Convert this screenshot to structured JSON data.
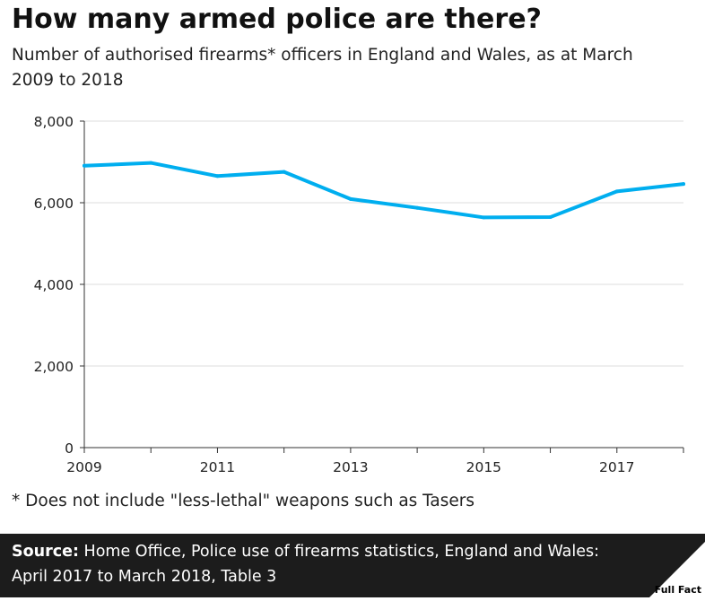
{
  "title": "How many armed police are there?",
  "subtitle": "Number of authorised firearms* officers in England and Wales, as at March 2009 to 2018",
  "footnote": "* Does not include \"less-lethal\" weapons such as Tasers",
  "source": {
    "label": "Source:",
    "text": "Home Office, Police use of firearms statistics, England and Wales: April 2017 to March 2018, Table 3"
  },
  "logo": {
    "text": "Full Fact"
  },
  "colors": {
    "line": "#00aeef",
    "axis": "#333333",
    "grid": "#dddddd",
    "source_bg": "#1c1c1c"
  },
  "chart_data": {
    "type": "line",
    "title": "How many armed police are there?",
    "xlabel": "",
    "ylabel": "",
    "x": [
      2009,
      2010,
      2011,
      2012,
      2013,
      2014,
      2015,
      2016,
      2017,
      2018
    ],
    "series": [
      {
        "name": "Authorised firearms officers",
        "values": [
          6906,
          6976,
          6653,
          6756,
          6091,
          5875,
          5639,
          5647,
          6278,
          6459
        ]
      }
    ],
    "xlim": [
      2009,
      2018
    ],
    "ylim": [
      0,
      8000
    ],
    "yticks": [
      0,
      2000,
      4000,
      6000,
      8000
    ],
    "ytick_labels": [
      "0",
      "2,000",
      "4,000",
      "6,000",
      "8,000"
    ],
    "xtick_labels": [
      "2009",
      "2011",
      "2013",
      "2015",
      "2017"
    ],
    "grid": true
  }
}
